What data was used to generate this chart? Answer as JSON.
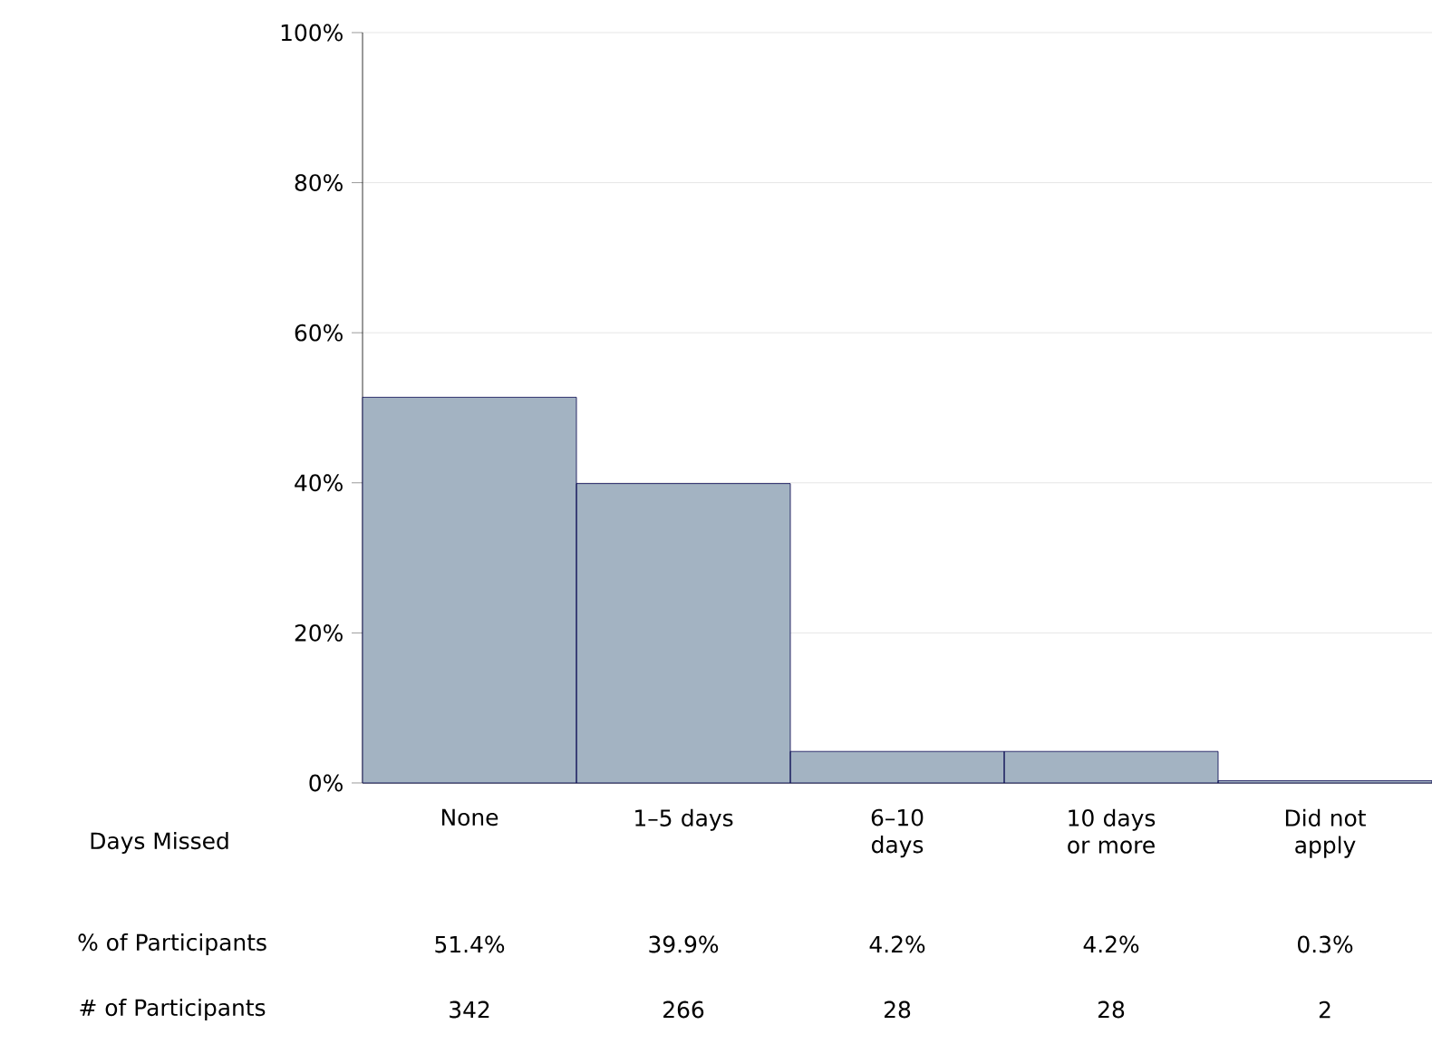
{
  "chart_data": {
    "type": "bar",
    "xlabel": "Days Missed",
    "categories": [
      "None",
      "1–5 days",
      "6–10 days",
      "10 days or more",
      "Did not apply"
    ],
    "values": [
      51.4,
      39.9,
      4.2,
      4.2,
      0.3
    ],
    "value_labels": [
      "51.4%",
      "39.9%",
      "4.2%",
      "4.2%",
      "0.3%"
    ],
    "color": "#a3b3c2",
    "ylim": [
      0,
      100
    ],
    "yticks": [
      {
        "value": 0,
        "label": "0%"
      },
      {
        "value": 20,
        "label": "20%"
      },
      {
        "value": 40,
        "label": "40%"
      },
      {
        "value": 60,
        "label": "60%"
      },
      {
        "value": 80,
        "label": "80%"
      },
      {
        "value": 100,
        "label": "100%"
      }
    ],
    "grid": "y",
    "annotations": [
      "% of Participants",
      "# of Participants",
      "342",
      "266",
      "28",
      "28",
      "2"
    ]
  }
}
